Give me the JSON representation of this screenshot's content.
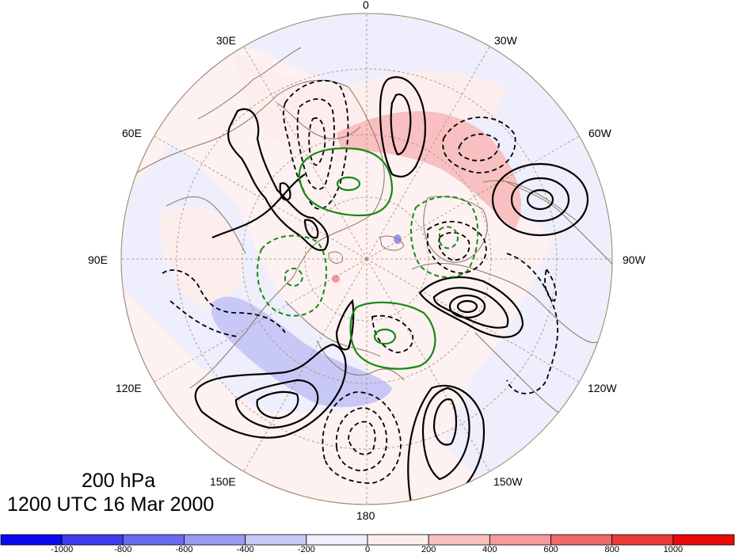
{
  "map": {
    "projection": "north-polar-stereographic",
    "longitude_labels": {
      "top": "0",
      "top_left": "30E",
      "top_right": "30W",
      "upper_left": "60E",
      "upper_right": "60W",
      "left": "90E",
      "right": "90W",
      "lower_left": "120E",
      "lower_right": "120W",
      "bottom_left": "150E",
      "bottom_right": "150W",
      "bottom": "180"
    },
    "title": {
      "level": "200 hPa",
      "datetime": "1200 UTC 16 Mar 2000"
    },
    "colors": {
      "land_outline": "#8c7860",
      "graticule": "#a08c6e",
      "contour_black": "#000000",
      "contour_green": "#138a13"
    }
  },
  "colorbar": {
    "labels": [
      "-1000",
      "-800",
      "-600",
      "-400",
      "-200",
      "0",
      "200",
      "400",
      "600",
      "800",
      "1000"
    ],
    "colors": [
      "#0a0af0",
      "#3c3cf0",
      "#6a6af0",
      "#9a9af2",
      "#c8c8f6",
      "#eeeefc",
      "#fdeeee",
      "#f8c0c0",
      "#f49a9a",
      "#f06868",
      "#ec3a3a",
      "#ea0a0a"
    ]
  }
}
